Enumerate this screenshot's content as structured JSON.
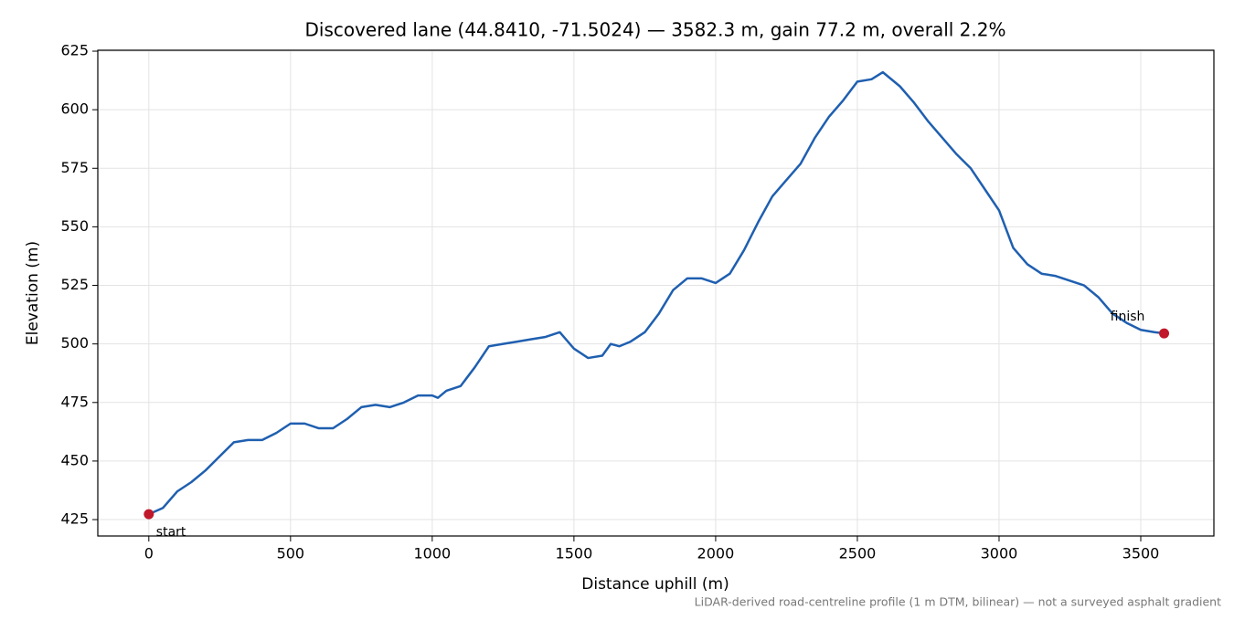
{
  "chart_data": {
    "type": "line",
    "title": "Discovered lane (44.8410, -71.5024) — 3582.3 m, gain 77.2 m, overall 2.2%",
    "x_label": "Distance uphill (m)",
    "y_label": "Elevation (m)",
    "footnote": "LiDAR-derived road-centreline profile (1 m DTM, bilinear) — not a surveyed asphalt gradient",
    "x": [
      0,
      50,
      100,
      150,
      200,
      250,
      300,
      350,
      400,
      450,
      500,
      550,
      600,
      650,
      700,
      750,
      800,
      850,
      900,
      950,
      1000,
      1020,
      1050,
      1100,
      1150,
      1200,
      1250,
      1300,
      1350,
      1400,
      1450,
      1500,
      1550,
      1600,
      1630,
      1660,
      1700,
      1750,
      1800,
      1850,
      1900,
      1950,
      2000,
      2050,
      2100,
      2150,
      2200,
      2250,
      2300,
      2350,
      2400,
      2450,
      2500,
      2550,
      2590,
      2650,
      2700,
      2750,
      2800,
      2850,
      2900,
      2950,
      3000,
      3050,
      3100,
      3150,
      3200,
      3250,
      3300,
      3350,
      3400,
      3450,
      3500,
      3550,
      3582.3
    ],
    "series": [
      {
        "name": "profile",
        "color": "#1f5fb0",
        "values": [
          427.3,
          430,
          437,
          441,
          446,
          452,
          458,
          459,
          459,
          462,
          466,
          466,
          464,
          464,
          468,
          473,
          474,
          473,
          475,
          478,
          478,
          477,
          480,
          482,
          490,
          499,
          500,
          501,
          502,
          503,
          505,
          498,
          494,
          495,
          500,
          499,
          501,
          505,
          513,
          523,
          528,
          528,
          526,
          530,
          540,
          552,
          563,
          570,
          577,
          588,
          597,
          604,
          612,
          613,
          616,
          610,
          603,
          595,
          588,
          581,
          575,
          566,
          557,
          541,
          534,
          530,
          529,
          527,
          525,
          520,
          513,
          509,
          506,
          505,
          504.5
        ]
      }
    ],
    "markers": [
      {
        "label": "start",
        "x": 0,
        "y": 427.3,
        "color": "#c0182a"
      },
      {
        "label": "finish",
        "x": 3582.3,
        "y": 504.5,
        "color": "#c0182a"
      }
    ],
    "xlim": [
      -180,
      3758
    ],
    "ylim": [
      418,
      625.4
    ],
    "xticks": [
      0,
      500,
      1000,
      1500,
      2000,
      2500,
      3000,
      3500
    ],
    "yticks": [
      425,
      450,
      475,
      500,
      525,
      550,
      575,
      600,
      625
    ],
    "grid": true
  }
}
